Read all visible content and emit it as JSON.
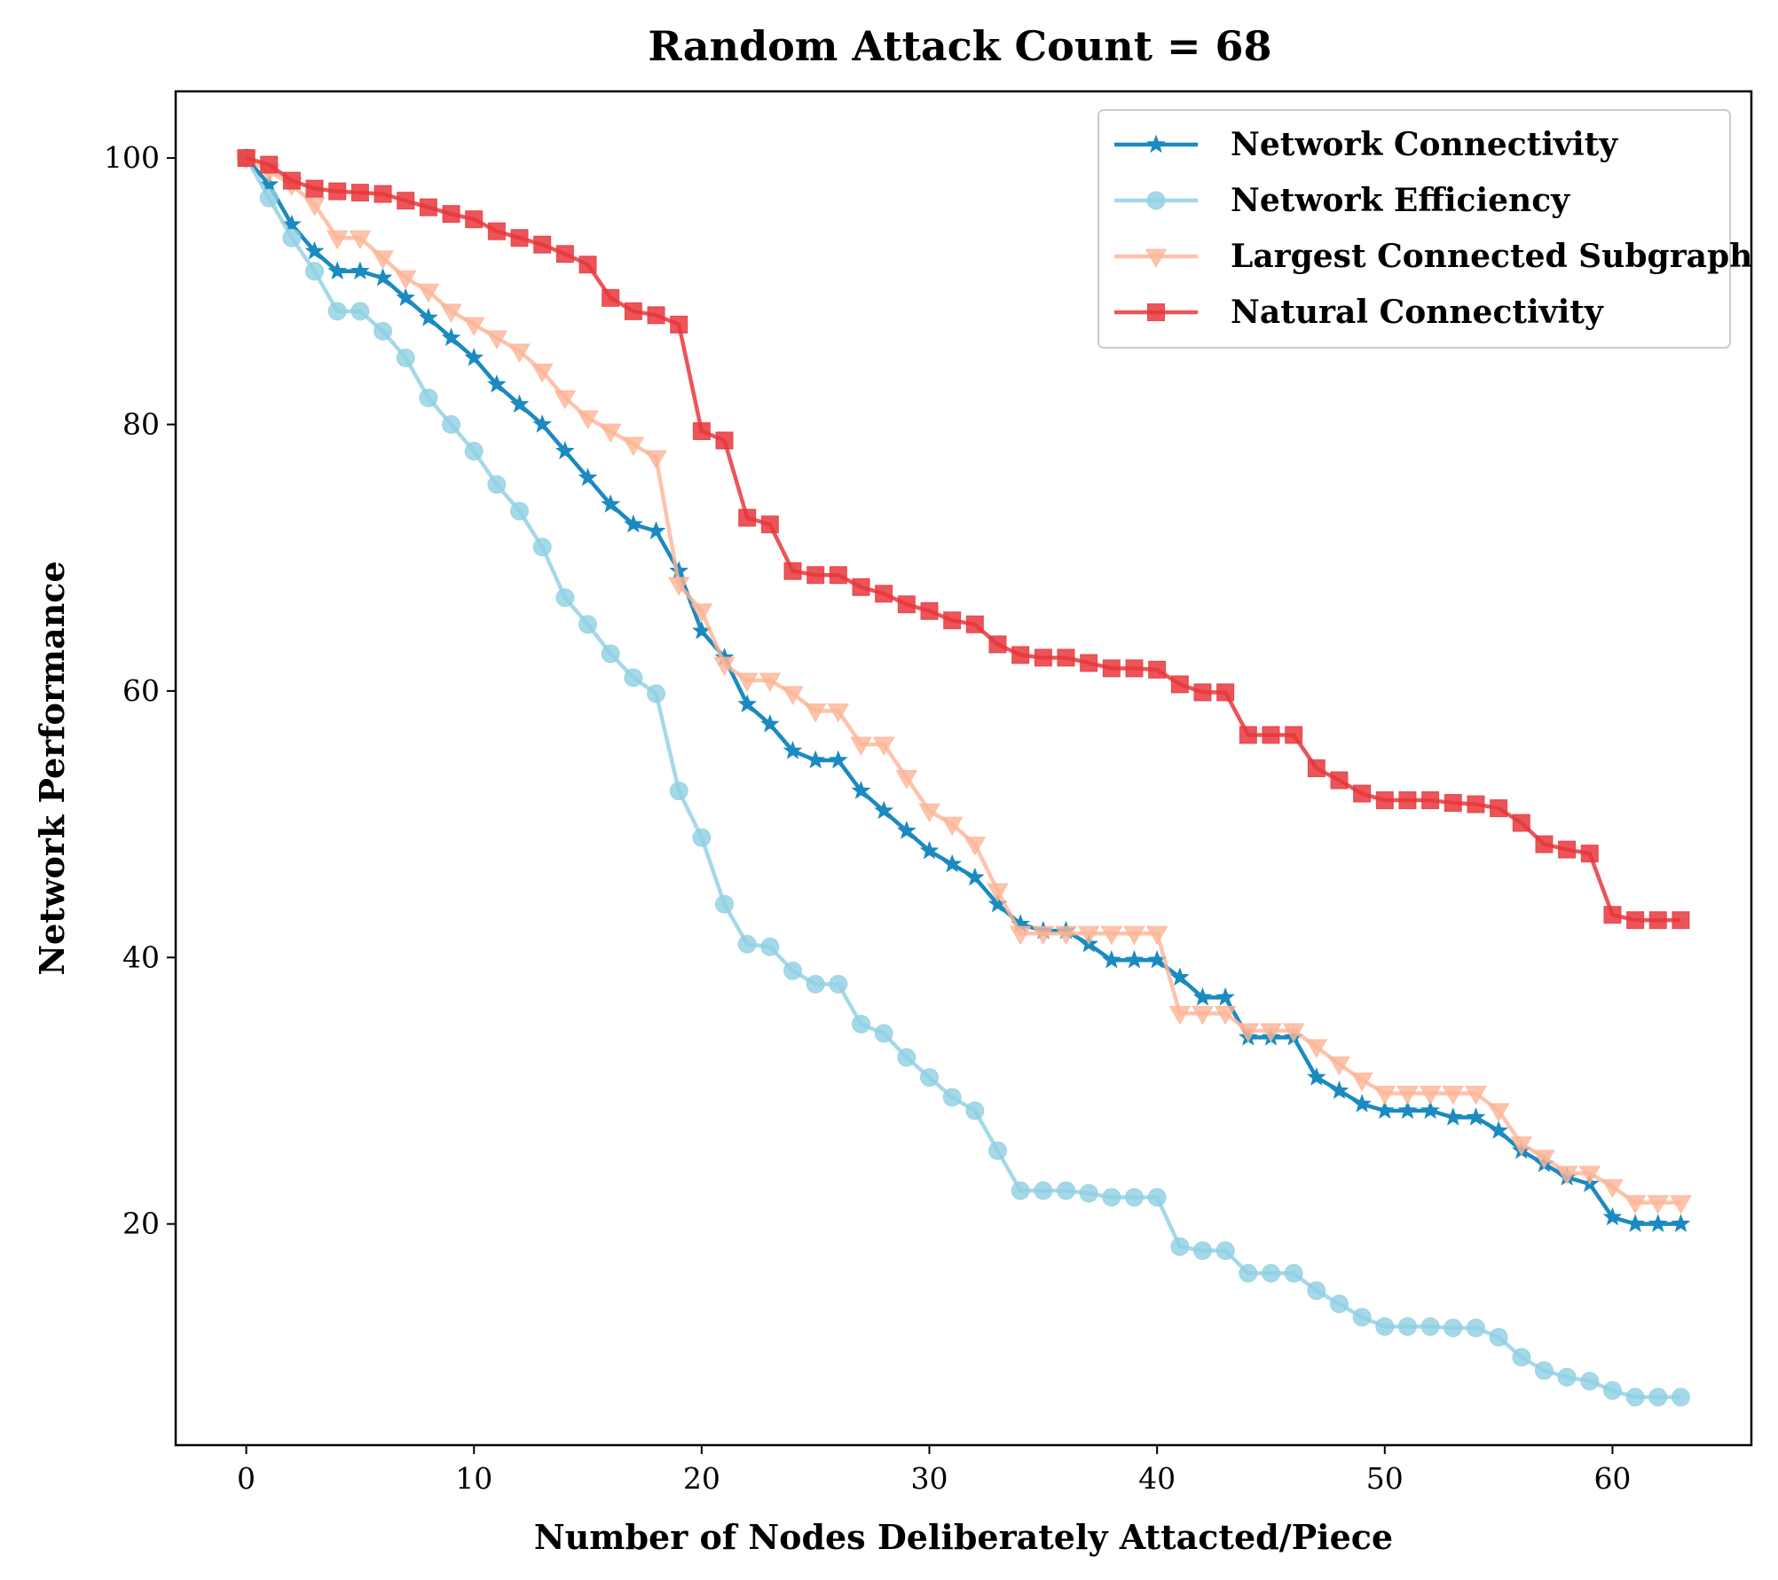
{
  "chart_data": {
    "type": "line",
    "title": "Random Attack Count = 68",
    "xlabel": "Number of Nodes Deliberately Attacted/Piece",
    "ylabel": "Network Performance",
    "xlim": [
      -3.1,
      66.1
    ],
    "ylim": [
      3.4,
      105.0
    ],
    "xticks": [
      0,
      10,
      20,
      30,
      40,
      50,
      60
    ],
    "yticks": [
      20,
      40,
      60,
      80,
      100
    ],
    "grid": false,
    "legend_position": "top-right",
    "x": [
      0,
      1,
      2,
      3,
      4,
      5,
      6,
      7,
      8,
      9,
      10,
      11,
      12,
      13,
      14,
      15,
      16,
      17,
      18,
      19,
      20,
      21,
      22,
      23,
      24,
      25,
      26,
      27,
      28,
      29,
      30,
      31,
      32,
      33,
      34,
      35,
      36,
      37,
      38,
      39,
      40,
      41,
      42,
      43,
      44,
      45,
      46,
      47,
      48,
      49,
      50,
      51,
      52,
      53,
      54,
      55,
      56,
      57,
      58,
      59,
      60,
      61,
      62,
      63
    ],
    "series": [
      {
        "name": "Network Connectivity",
        "color": "#1b8ac0",
        "marker": "star",
        "values": [
          100,
          98,
          95,
          93,
          91.5,
          91.5,
          91,
          89.5,
          88,
          86.5,
          85,
          83,
          81.5,
          80,
          78,
          76,
          74,
          72.5,
          72,
          69,
          64.5,
          62.5,
          59,
          57.5,
          55.5,
          54.8,
          54.8,
          52.5,
          51,
          49.5,
          48,
          47,
          46,
          44,
          42.5,
          42,
          42,
          41,
          39.8,
          39.8,
          39.8,
          38.5,
          37,
          37,
          34,
          34,
          34,
          31,
          30,
          29,
          28.5,
          28.5,
          28.5,
          28,
          28,
          27,
          25.5,
          24.5,
          23.5,
          23,
          20.5,
          20,
          20,
          20
        ]
      },
      {
        "name": "Network Efficiency",
        "color": "#8ecfe2",
        "marker": "circle",
        "values": [
          100,
          97,
          94,
          91.5,
          88.5,
          88.5,
          87,
          85,
          82,
          80,
          78,
          75.5,
          73.5,
          70.8,
          67,
          65,
          62.8,
          61,
          59.8,
          52.5,
          49,
          44,
          41,
          40.8,
          39,
          38,
          38,
          35,
          34.3,
          32.5,
          31,
          29.5,
          28.5,
          25.5,
          22.5,
          22.5,
          22.5,
          22.3,
          22,
          22,
          22,
          18.3,
          18,
          18,
          16.3,
          16.3,
          16.3,
          15,
          14,
          13,
          12.3,
          12.3,
          12.3,
          12.2,
          12.2,
          11.5,
          10,
          9,
          8.5,
          8.2,
          7.5,
          7,
          7,
          7
        ]
      },
      {
        "name": "Largest Connected Subgraph",
        "color": "#fcb496",
        "marker": "triangle-down",
        "values": [
          100,
          99,
          98,
          96.5,
          94,
          94,
          92.5,
          91,
          90,
          88.5,
          87.5,
          86.5,
          85.5,
          84,
          82,
          80.5,
          79.5,
          78.5,
          77.5,
          68,
          66,
          62,
          60.8,
          60.8,
          59.8,
          58.5,
          58.5,
          56,
          56,
          53.5,
          51,
          50,
          48.5,
          45,
          41.8,
          41.8,
          41.8,
          41.8,
          41.8,
          41.8,
          41.8,
          35.8,
          35.8,
          35.8,
          34.5,
          34.5,
          34.5,
          33.3,
          32,
          30.8,
          29.8,
          29.8,
          29.8,
          29.8,
          29.8,
          28.5,
          26,
          25,
          23.8,
          23.8,
          22.8,
          21.6,
          21.6,
          21.6
        ]
      },
      {
        "name": "Natural Connectivity",
        "color": "#e8373c",
        "marker": "square",
        "values": [
          100,
          99.5,
          98.3,
          97.7,
          97.5,
          97.4,
          97.3,
          96.8,
          96.3,
          95.8,
          95.4,
          94.5,
          94,
          93.5,
          92.8,
          92,
          89.5,
          88.5,
          88.2,
          87.5,
          79.5,
          78.8,
          73,
          72.5,
          69,
          68.7,
          68.7,
          67.8,
          67.3,
          66.5,
          66,
          65.3,
          65,
          63.5,
          62.7,
          62.5,
          62.5,
          62.1,
          61.7,
          61.7,
          61.6,
          60.5,
          59.9,
          59.9,
          56.7,
          56.7,
          56.7,
          54.2,
          53.3,
          52.3,
          51.8,
          51.8,
          51.8,
          51.6,
          51.5,
          51.2,
          50.1,
          48.5,
          48.1,
          47.8,
          43.2,
          42.8,
          42.8,
          42.8
        ]
      }
    ]
  }
}
